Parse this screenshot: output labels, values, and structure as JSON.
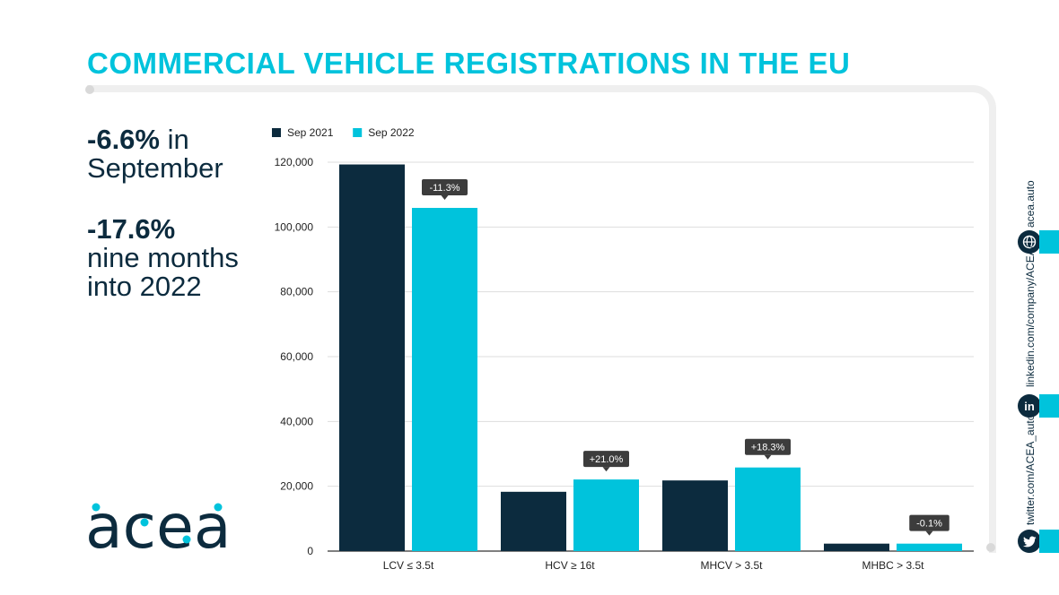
{
  "title": "COMMERCIAL VEHICLE REGISTRATIONS IN THE EU",
  "kpi": {
    "sept_value": "-6.6%",
    "sept_suffix": " in",
    "sept_label": "September",
    "ytd_value": "-17.6%",
    "ytd_label1": "nine months",
    "ytd_label2": "into 2022"
  },
  "logo": {
    "text": "acea"
  },
  "social": {
    "web_url": "acea.auto",
    "linkedin_url": "linkedin.com/company/ACEA/",
    "twitter_url": "twitter.com/ACEA_auto",
    "web_icon": "globe-icon",
    "linkedin_icon": "linkedin-icon",
    "twitter_icon": "twitter-icon",
    "linkedin_glyph": "in"
  },
  "colors": {
    "accent": "#00c3dc",
    "dark": "#0c2b3e"
  },
  "chart_data": {
    "type": "bar",
    "categories": [
      "LCV ≤ 3.5t",
      "HCV ≥ 16t",
      "MHCV > 3.5t",
      "MHBC > 3.5t"
    ],
    "series": [
      {
        "name": "Sep 2021",
        "color": "#0c2b3e",
        "values": [
          119300,
          18300,
          21800,
          2300
        ]
      },
      {
        "name": "Sep 2022",
        "color": "#00c3dc",
        "values": [
          105900,
          22100,
          25800,
          2300
        ]
      }
    ],
    "annotations": [
      "-11.3%",
      "+21.0%",
      "+18.3%",
      "-0.1%"
    ],
    "ylim": [
      0,
      120000
    ],
    "yticks": [
      "0",
      "20,000",
      "40,000",
      "60,000",
      "80,000",
      "100,000",
      "120,000"
    ],
    "ytick_values": [
      0,
      20000,
      40000,
      60000,
      80000,
      100000,
      120000
    ],
    "grid": true,
    "legend_position": "top-left"
  }
}
